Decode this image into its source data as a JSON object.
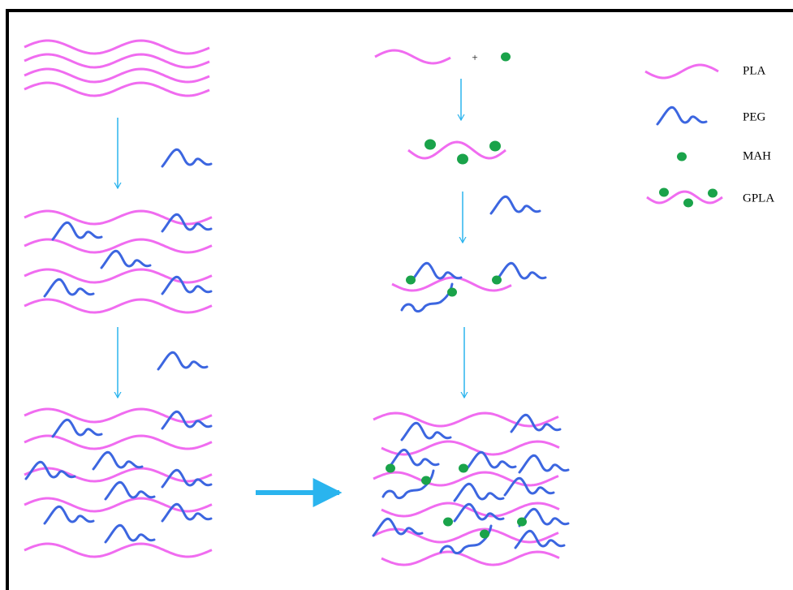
{
  "plus": "+",
  "legend": [
    {
      "label": "PLA"
    },
    {
      "label": "PEG"
    },
    {
      "label": "MAH"
    },
    {
      "label": "GPLA"
    }
  ]
}
